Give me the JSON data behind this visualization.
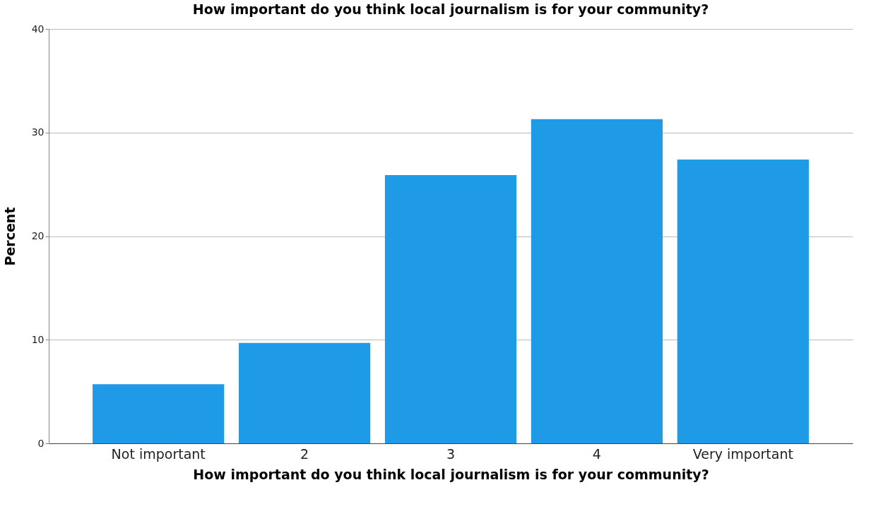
{
  "chart_data": {
    "type": "bar",
    "title": "How important do you think local journalism is for your community?",
    "xlabel": "How important do you think local journalism is for your community?",
    "ylabel": "Percent",
    "categories": [
      "Not important",
      "2",
      "3",
      "4",
      "Very important"
    ],
    "values": [
      5.7,
      9.7,
      25.9,
      31.3,
      27.4
    ],
    "color": "#1e9ae6",
    "ylim": [
      0,
      40
    ],
    "yticks": [
      0,
      10,
      20,
      30,
      40
    ],
    "grid": "y"
  }
}
